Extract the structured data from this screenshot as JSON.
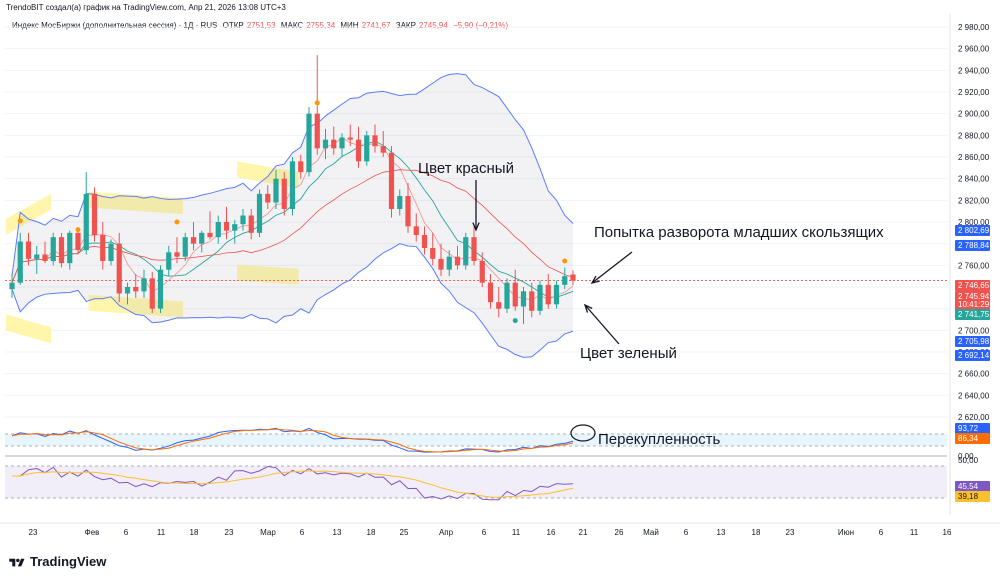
{
  "header": {
    "attribution": "TrendoBIT создал(а) график на TradingView.com, Апр 21, 2026 13:08 UTC+3"
  },
  "legend": {
    "instrument": "Индекс МосБиржи (дополнительная сессия) · 1Д · RUS",
    "open_label": "ОТКР",
    "open_value": "2751,53",
    "high_label": "МАКС",
    "high_value": "2755,34",
    "low_label": "МИН",
    "low_value": "2741,67",
    "close_label": "ЗАКР",
    "close_value": "2745,94",
    "change": "−5,90 (−0,21%)"
  },
  "annotations": {
    "red": "Цвет красный",
    "reversal": "Попытка разворота младших скользящих",
    "green": "Цвет зеленый",
    "overbought": "Перекупленность"
  },
  "price_axis": {
    "ticks": [
      "2 980,00",
      "2 960,00",
      "2 940,00",
      "2 920,00",
      "2 900,00",
      "2 880,00",
      "2 860,00",
      "2 840,00",
      "2 820,00",
      "2 800,00",
      "2 780,00",
      "2 760,00",
      "2 740,00",
      "2 720,00",
      "2 700,00",
      "2 680,00",
      "2 660,00",
      "2 640,00",
      "2 620,00"
    ],
    "tags": [
      {
        "text": "2 802,69",
        "color": "#2962ff",
        "bg": true
      },
      {
        "text": "2 788,84",
        "color": "#2962ff",
        "bg": true
      },
      {
        "text": "2 746,65",
        "color": "#ef5350",
        "bg": true
      },
      {
        "text": "2 745,94",
        "color": "#ef5350",
        "bg": true
      },
      {
        "text": "10:41:29",
        "color": "#ef5350",
        "bg": true
      },
      {
        "text": "2 741,75",
        "color": "#26a69a",
        "bg": true
      },
      {
        "text": "2 705,98",
        "color": "#2962ff",
        "bg": true
      },
      {
        "text": "2 692,14",
        "color": "#2962ff",
        "bg": true
      }
    ]
  },
  "stoch_axis": {
    "tags": [
      {
        "text": "93,72",
        "color": "#2962ff"
      },
      {
        "text": "86,34",
        "color": "#f57c00"
      }
    ],
    "zero": "0,00"
  },
  "rsi_axis": {
    "top": "50,00",
    "tags": [
      {
        "text": "45,54",
        "color": "#7e57c2"
      },
      {
        "text": "39,18",
        "color": "#fbc02d"
      }
    ]
  },
  "time_axis": [
    "23",
    "Фев",
    "6",
    "11",
    "18",
    "23",
    "Мар",
    "6",
    "13",
    "18",
    "25",
    "Апр",
    "6",
    "11",
    "16",
    "21",
    "26",
    "Май",
    "6",
    "13",
    "18",
    "23",
    "Июн",
    "6",
    "11",
    "16"
  ],
  "brand": {
    "name": "TradingView"
  },
  "chart_data": {
    "type": "candlestick",
    "interval": "1D",
    "ylim": [
      2620,
      2980
    ],
    "candles": [
      {
        "o": 2738,
        "h": 2752,
        "l": 2730,
        "c": 2744
      },
      {
        "o": 2744,
        "h": 2790,
        "l": 2742,
        "c": 2782
      },
      {
        "o": 2782,
        "h": 2790,
        "l": 2760,
        "c": 2766
      },
      {
        "o": 2766,
        "h": 2778,
        "l": 2752,
        "c": 2770
      },
      {
        "o": 2770,
        "h": 2782,
        "l": 2762,
        "c": 2764
      },
      {
        "o": 2764,
        "h": 2790,
        "l": 2760,
        "c": 2786
      },
      {
        "o": 2786,
        "h": 2790,
        "l": 2758,
        "c": 2762
      },
      {
        "o": 2762,
        "h": 2792,
        "l": 2756,
        "c": 2790
      },
      {
        "o": 2790,
        "h": 2794,
        "l": 2770,
        "c": 2774
      },
      {
        "o": 2774,
        "h": 2846,
        "l": 2770,
        "c": 2826
      },
      {
        "o": 2826,
        "h": 2832,
        "l": 2782,
        "c": 2788
      },
      {
        "o": 2788,
        "h": 2800,
        "l": 2756,
        "c": 2764
      },
      {
        "o": 2764,
        "h": 2784,
        "l": 2760,
        "c": 2780
      },
      {
        "o": 2780,
        "h": 2790,
        "l": 2726,
        "c": 2734
      },
      {
        "o": 2734,
        "h": 2744,
        "l": 2724,
        "c": 2740
      },
      {
        "o": 2740,
        "h": 2752,
        "l": 2730,
        "c": 2736
      },
      {
        "o": 2736,
        "h": 2756,
        "l": 2730,
        "c": 2748
      },
      {
        "o": 2748,
        "h": 2754,
        "l": 2716,
        "c": 2720
      },
      {
        "o": 2720,
        "h": 2760,
        "l": 2716,
        "c": 2756
      },
      {
        "o": 2756,
        "h": 2778,
        "l": 2750,
        "c": 2772
      },
      {
        "o": 2772,
        "h": 2786,
        "l": 2762,
        "c": 2768
      },
      {
        "o": 2768,
        "h": 2790,
        "l": 2764,
        "c": 2786
      },
      {
        "o": 2786,
        "h": 2800,
        "l": 2774,
        "c": 2780
      },
      {
        "o": 2780,
        "h": 2792,
        "l": 2772,
        "c": 2790
      },
      {
        "o": 2790,
        "h": 2810,
        "l": 2784,
        "c": 2786
      },
      {
        "o": 2786,
        "h": 2806,
        "l": 2780,
        "c": 2800
      },
      {
        "o": 2800,
        "h": 2814,
        "l": 2784,
        "c": 2792
      },
      {
        "o": 2792,
        "h": 2802,
        "l": 2780,
        "c": 2798
      },
      {
        "o": 2798,
        "h": 2812,
        "l": 2792,
        "c": 2806
      },
      {
        "o": 2806,
        "h": 2812,
        "l": 2784,
        "c": 2790
      },
      {
        "o": 2790,
        "h": 2830,
        "l": 2786,
        "c": 2826
      },
      {
        "o": 2826,
        "h": 2834,
        "l": 2812,
        "c": 2818
      },
      {
        "o": 2818,
        "h": 2848,
        "l": 2812,
        "c": 2840
      },
      {
        "o": 2840,
        "h": 2846,
        "l": 2806,
        "c": 2812
      },
      {
        "o": 2812,
        "h": 2860,
        "l": 2806,
        "c": 2856
      },
      {
        "o": 2856,
        "h": 2862,
        "l": 2840,
        "c": 2846
      },
      {
        "o": 2846,
        "h": 2906,
        "l": 2842,
        "c": 2900
      },
      {
        "o": 2900,
        "h": 2954,
        "l": 2862,
        "c": 2868
      },
      {
        "o": 2868,
        "h": 2886,
        "l": 2858,
        "c": 2876
      },
      {
        "o": 2876,
        "h": 2888,
        "l": 2862,
        "c": 2868
      },
      {
        "o": 2868,
        "h": 2882,
        "l": 2860,
        "c": 2878
      },
      {
        "o": 2878,
        "h": 2890,
        "l": 2870,
        "c": 2876
      },
      {
        "o": 2876,
        "h": 2888,
        "l": 2850,
        "c": 2856
      },
      {
        "o": 2856,
        "h": 2884,
        "l": 2852,
        "c": 2880
      },
      {
        "o": 2880,
        "h": 2890,
        "l": 2864,
        "c": 2870
      },
      {
        "o": 2870,
        "h": 2884,
        "l": 2860,
        "c": 2864
      },
      {
        "o": 2864,
        "h": 2870,
        "l": 2804,
        "c": 2812
      },
      {
        "o": 2812,
        "h": 2830,
        "l": 2806,
        "c": 2824
      },
      {
        "o": 2824,
        "h": 2836,
        "l": 2790,
        "c": 2796
      },
      {
        "o": 2796,
        "h": 2808,
        "l": 2782,
        "c": 2788
      },
      {
        "o": 2788,
        "h": 2796,
        "l": 2770,
        "c": 2776
      },
      {
        "o": 2776,
        "h": 2790,
        "l": 2760,
        "c": 2766
      },
      {
        "o": 2766,
        "h": 2780,
        "l": 2750,
        "c": 2756
      },
      {
        "o": 2756,
        "h": 2774,
        "l": 2750,
        "c": 2768
      },
      {
        "o": 2768,
        "h": 2778,
        "l": 2756,
        "c": 2760
      },
      {
        "o": 2760,
        "h": 2790,
        "l": 2756,
        "c": 2786
      },
      {
        "o": 2786,
        "h": 2798,
        "l": 2760,
        "c": 2764
      },
      {
        "o": 2764,
        "h": 2772,
        "l": 2740,
        "c": 2744
      },
      {
        "o": 2744,
        "h": 2752,
        "l": 2720,
        "c": 2726
      },
      {
        "o": 2726,
        "h": 2740,
        "l": 2712,
        "c": 2720
      },
      {
        "o": 2720,
        "h": 2748,
        "l": 2716,
        "c": 2744
      },
      {
        "o": 2744,
        "h": 2756,
        "l": 2718,
        "c": 2722
      },
      {
        "o": 2722,
        "h": 2740,
        "l": 2706,
        "c": 2736
      },
      {
        "o": 2736,
        "h": 2744,
        "l": 2712,
        "c": 2718
      },
      {
        "o": 2718,
        "h": 2746,
        "l": 2714,
        "c": 2742
      },
      {
        "o": 2742,
        "h": 2752,
        "l": 2720,
        "c": 2724
      },
      {
        "o": 2724,
        "h": 2746,
        "l": 2720,
        "c": 2742
      },
      {
        "o": 2742,
        "h": 2758,
        "l": 2738,
        "c": 2750
      },
      {
        "o": 2751.53,
        "h": 2755.34,
        "l": 2741.67,
        "c": 2745.94
      }
    ]
  }
}
